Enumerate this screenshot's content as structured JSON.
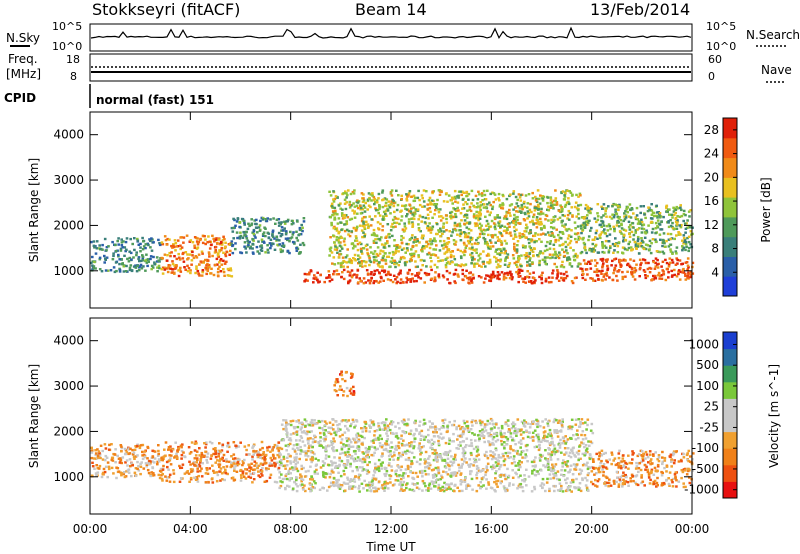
{
  "header": {
    "station": "Stokkseyri (fitACF)",
    "beam": "Beam 14",
    "date": "13/Feb/2014"
  },
  "top_panels": {
    "nsky_label": "N.Sky",
    "nsky_ticks": [
      "10^5",
      "10^0"
    ],
    "nsearch_label": "N.Search",
    "nsearch_ticks": [
      "10^5",
      "10^0"
    ],
    "freq_label_line1": "Freq.",
    "freq_label_line2": "[MHz]",
    "freq_ticks": [
      "18",
      "8"
    ],
    "nave_label": "Nave",
    "nave_ticks": [
      "60",
      "0"
    ],
    "cpid_label": "CPID",
    "cpid_value": "normal (fast) 151"
  },
  "chart_data": [
    {
      "type": "heatmap",
      "title": "",
      "xlabel": "",
      "ylabel": "Slant Range [km]",
      "x_ticks": [
        "00:00",
        "04:00",
        "08:00",
        "12:00",
        "16:00",
        "20:00",
        "00:00"
      ],
      "y_ticks": [
        "1000",
        "2000",
        "3000",
        "4000"
      ],
      "xlim_hours": [
        0,
        24
      ],
      "ylim_km": [
        180,
        4500
      ],
      "colorbar": {
        "label": "Power [dB]",
        "ticks": [
          "4",
          "8",
          "12",
          "16",
          "20",
          "24",
          "28"
        ],
        "range": [
          0,
          30
        ],
        "colors": [
          "#1f3fd8",
          "#2a5fa8",
          "#3a7f7a",
          "#4f9a5a",
          "#8fc43a",
          "#e8c020",
          "#f08a18",
          "#f05a10",
          "#e02008"
        ]
      },
      "regions": [
        {
          "t0": 0.0,
          "t1": 2.8,
          "r0": 1000,
          "r1": 1750,
          "level": 0.3
        },
        {
          "t0": 2.8,
          "t1": 5.6,
          "r0": 900,
          "r1": 1800,
          "level": 0.75
        },
        {
          "t0": 5.6,
          "t1": 8.5,
          "r0": 1400,
          "r1": 2200,
          "level": 0.3
        },
        {
          "t0": 8.5,
          "t1": 19.5,
          "r0": 750,
          "r1": 1050,
          "level": 0.9
        },
        {
          "t0": 9.5,
          "t1": 19.5,
          "r0": 1100,
          "r1": 2800,
          "level": 0.55
        },
        {
          "t0": 19.5,
          "t1": 24.0,
          "r0": 800,
          "r1": 1300,
          "level": 0.85
        },
        {
          "t0": 19.5,
          "t1": 24.0,
          "r0": 1400,
          "r1": 2500,
          "level": 0.45
        }
      ]
    },
    {
      "type": "heatmap",
      "title": "",
      "xlabel": "Time UT",
      "ylabel": "Slant Range [km]",
      "x_ticks": [
        "00:00",
        "04:00",
        "08:00",
        "12:00",
        "16:00",
        "20:00",
        "00:00"
      ],
      "y_ticks": [
        "1000",
        "2000",
        "3000",
        "4000"
      ],
      "xlim_hours": [
        0,
        24
      ],
      "ylim_km": [
        180,
        4500
      ],
      "colorbar": {
        "label": "Velocity [m s^-1]",
        "ticks": [
          "1000",
          "500",
          "100",
          "25",
          "-25",
          "-100",
          "-500",
          "-1000"
        ],
        "range": [
          -1000,
          1000
        ],
        "colors": [
          "#e81010",
          "#ee5010",
          "#f08018",
          "#f0a030",
          "#c8c8c8",
          "#c8c8c8",
          "#7ac83a",
          "#3a9a5a",
          "#2a6fa0",
          "#1a3fd0"
        ]
      },
      "regions": [
        {
          "t0": 0.0,
          "t1": 2.8,
          "r0": 1000,
          "r1": 1750,
          "level": 0.35
        },
        {
          "t0": 2.8,
          "t1": 7.5,
          "r0": 900,
          "r1": 1800,
          "level": 0.3
        },
        {
          "t0": 7.5,
          "t1": 20.0,
          "r0": 700,
          "r1": 2300,
          "level": 0.5
        },
        {
          "t0": 9.7,
          "t1": 10.5,
          "r0": 2800,
          "r1": 3400,
          "level": 0.25
        },
        {
          "t0": 20.0,
          "t1": 24.0,
          "r0": 800,
          "r1": 1600,
          "level": 0.3
        }
      ]
    }
  ]
}
